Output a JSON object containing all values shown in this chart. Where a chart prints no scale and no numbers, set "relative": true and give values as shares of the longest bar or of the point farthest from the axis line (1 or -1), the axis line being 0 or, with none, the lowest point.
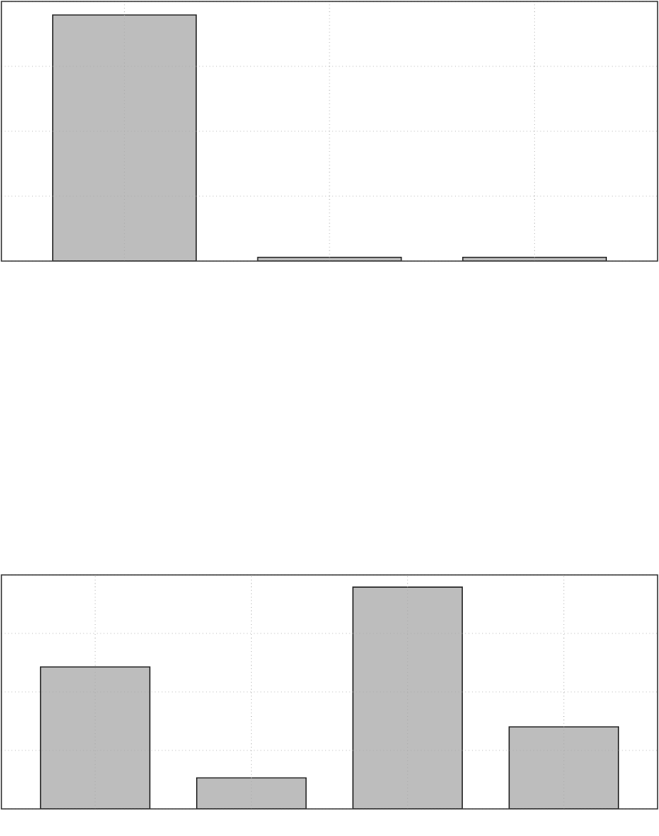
{
  "chart_data": [
    {
      "type": "bar",
      "categories": [
        null,
        null,
        null
      ],
      "values": [
        1,
        0.015,
        0.015
      ],
      "color": "#bdbdbd",
      "relative": true,
      "grid": true
    },
    {
      "type": "bar",
      "categories": [
        null,
        null,
        null,
        null
      ],
      "values": [
        0.64,
        0.14,
        1,
        0.37
      ],
      "color": "#bdbdbd",
      "relative": true,
      "grid": true
    }
  ]
}
